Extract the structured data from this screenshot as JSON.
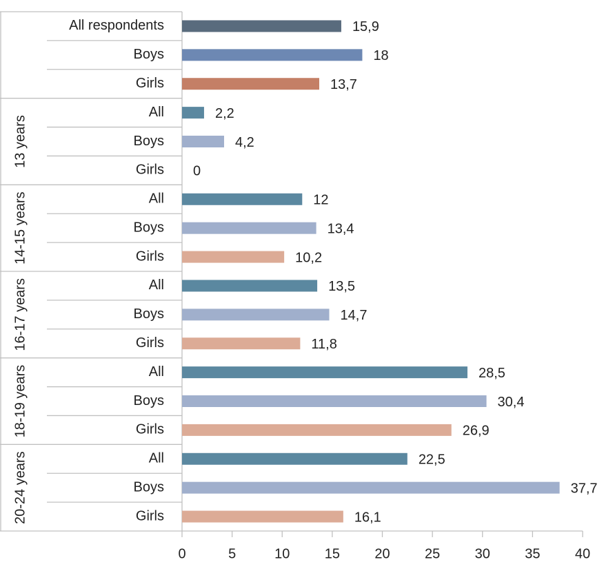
{
  "chart_data": {
    "type": "bar",
    "orientation": "horizontal",
    "categories": [
      "All respondents",
      "Boys",
      "Girls",
      "All",
      "Boys",
      "Girls",
      "All",
      "Boys",
      "Girls",
      "All",
      "Boys",
      "Girls",
      "All",
      "Boys",
      "Girls",
      "All",
      "Boys",
      "Girls"
    ],
    "values": [
      15.9,
      18,
      13.7,
      2.2,
      4.2,
      0,
      12,
      13.4,
      10.2,
      13.5,
      14.7,
      11.8,
      28.5,
      30.4,
      26.9,
      22.5,
      37.7,
      16.1
    ],
    "value_labels": [
      "15,9",
      "18",
      "13,7",
      "2,2",
      "4,2",
      "0",
      "12",
      "13,4",
      "10,2",
      "13,5",
      "14,7",
      "11,8",
      "28,5",
      "30,4",
      "26,9",
      "22,5",
      "37,7",
      "16,1"
    ],
    "colors": [
      "#596b7d",
      "#6d88b3",
      "#c47f66",
      "#5b88a0",
      "#a0afcc",
      "#dcab96",
      "#5b88a0",
      "#a0afcc",
      "#dcab96",
      "#5b88a0",
      "#a0afcc",
      "#dcab96",
      "#5b88a0",
      "#a0afcc",
      "#dcab96",
      "#5b88a0",
      "#a0afcc",
      "#dcab96"
    ],
    "groups": [
      "13 years",
      "14-15 years",
      "16-17 years",
      "18-19 years",
      "20-24 years"
    ],
    "xlim": [
      0,
      40
    ],
    "xticks": [
      0,
      5,
      10,
      15,
      20,
      25,
      30,
      35,
      40
    ]
  }
}
